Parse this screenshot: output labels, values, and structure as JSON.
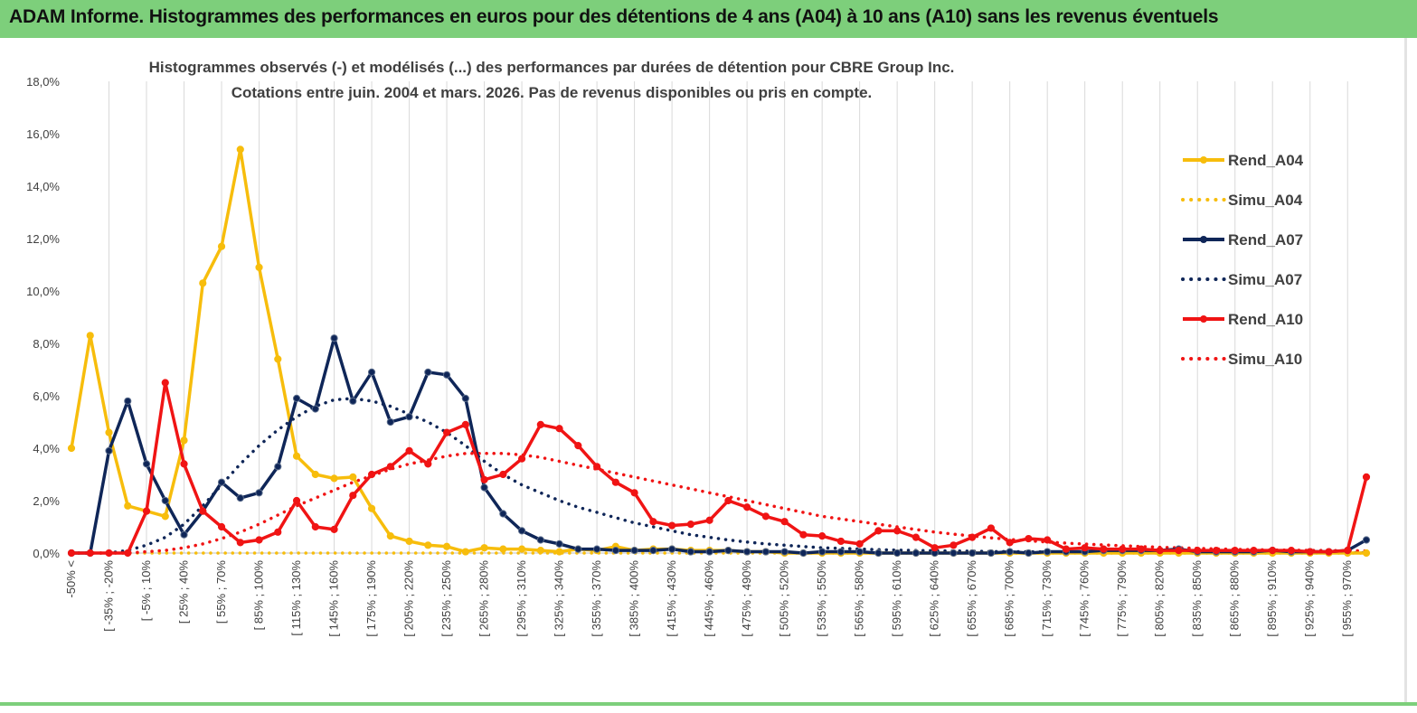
{
  "banner": {
    "title": "ADAM Informe. Histogrammes des performances en euros pour des détentions de 4 ans (A04) à 10 ans (A10) sans les revenus éventuels"
  },
  "colors": {
    "banner_bg": "#7dcf7b",
    "a04": "#f7bd0c",
    "a07": "#0f2658",
    "a10": "#f01414",
    "grid": "#d9d9d9"
  },
  "chart_data": {
    "type": "line",
    "title": "Histogrammes observés (-) et modélisés (...) des performances par durées de détention pour CBRE Group Inc.",
    "subtitle": "Cotations entre juin. 2004 et mars. 2026. Pas de revenus disponibles ou pris en compte.",
    "ylim": [
      0,
      18
    ],
    "yticks": [
      "0,0%",
      "2,0%",
      "4,0%",
      "6,0%",
      "8,0%",
      "10,0%",
      "12,0%",
      "14,0%",
      "16,0%",
      "18,0%"
    ],
    "category_count": 70,
    "tick_labels": [
      "-50% <",
      "[ -35% ; -20%",
      "[ -5% ; 10%",
      "[ 25% ; 40%",
      "[ 55% ; 70%",
      "[ 85% ; 100%",
      "[ 115% ; 130%",
      "[ 145% ; 160%",
      "[ 175% ; 190%",
      "[ 205% ; 220%",
      "[ 235% ; 250%",
      "[ 265% ; 280%",
      "[ 295% ; 310%",
      "[ 325% ; 340%",
      "[ 355% ; 370%",
      "[ 385% ; 400%",
      "[ 415% ; 430%",
      "[ 445% ; 460%",
      "[ 475% ; 490%",
      "[ 505% ; 520%",
      "[ 535% ; 550%",
      "[ 565% ; 580%",
      "[ 595% ; 610%",
      "[ 625% ; 640%",
      "[ 655% ; 670%",
      "[ 685% ; 700%",
      "[ 715% ; 730%",
      "[ 745% ; 760%",
      "[ 775% ; 790%",
      "[ 805% ; 820%",
      "[ 835% ; 850%",
      "[ 865% ; 880%",
      "[ 895% ; 910%",
      "[ 925% ; 940%",
      "[ 955% ; 970%"
    ],
    "series": [
      {
        "name": "Rend_A04",
        "style": "solid",
        "color": "#f7bd0c",
        "values": [
          4.0,
          8.3,
          4.6,
          1.8,
          1.6,
          1.4,
          4.3,
          10.3,
          11.7,
          15.4,
          10.9,
          7.4,
          3.7,
          3.0,
          2.85,
          2.9,
          1.7,
          0.65,
          0.45,
          0.3,
          0.25,
          0.05,
          0.2,
          0.15,
          0.15,
          0.1,
          0.05,
          0.15,
          0.1,
          0.25,
          0.1,
          0.15,
          0.15,
          0.1,
          0.1,
          0.1,
          0.05,
          0.05,
          0.0,
          0.0,
          0.0,
          0.0,
          0.0,
          0.0,
          0.0,
          0.0,
          0.0,
          0.0,
          0.0,
          0.0,
          0.0,
          0.0,
          0.0,
          0.0,
          0.0,
          0.0,
          0.0,
          0.0,
          0.0,
          0.0,
          0.0,
          0.0,
          0.0,
          0.0,
          0.0,
          0.0,
          0.0,
          0.0,
          0.0,
          0.0
        ]
      },
      {
        "name": "Simu_A04",
        "style": "dotted",
        "color": "#f7bd0c",
        "values": [
          0.0,
          0.0,
          0.0,
          0.0,
          0.0,
          0.0,
          0.0,
          0.0,
          0.0,
          0.0,
          0.0,
          0.0,
          0.0,
          0.0,
          0.0,
          0.0,
          0.0,
          0.0,
          0.0,
          0.0,
          0.0,
          0.0,
          0.0,
          0.0,
          0.0,
          0.0,
          0.0,
          0.0,
          0.0,
          0.0,
          0.0,
          0.0,
          0.0,
          0.0,
          0.0,
          0.0,
          0.0,
          0.0,
          0.0,
          0.0,
          0.0,
          0.0,
          0.0,
          0.0,
          0.0,
          0.0,
          0.0,
          0.0,
          0.0,
          0.0,
          0.0,
          0.0,
          0.0,
          0.0,
          0.0,
          0.0,
          0.0,
          0.0,
          0.0,
          0.0,
          0.0,
          0.0,
          0.0,
          0.0,
          0.0,
          0.0,
          0.0,
          0.0,
          0.0,
          0.0
        ]
      },
      {
        "name": "Rend_A07",
        "style": "solid",
        "color": "#0f2658",
        "values": [
          0.0,
          0.0,
          3.9,
          5.8,
          3.4,
          2.0,
          0.7,
          1.6,
          2.7,
          2.1,
          2.3,
          3.3,
          5.9,
          5.5,
          8.2,
          5.8,
          6.9,
          5.0,
          5.2,
          6.9,
          6.8,
          5.9,
          2.5,
          1.5,
          0.85,
          0.5,
          0.35,
          0.15,
          0.15,
          0.1,
          0.1,
          0.1,
          0.15,
          0.05,
          0.05,
          0.1,
          0.05,
          0.05,
          0.05,
          0.0,
          0.05,
          0.05,
          0.05,
          0.0,
          0.0,
          0.0,
          0.0,
          0.0,
          0.0,
          0.0,
          0.05,
          0.0,
          0.05,
          0.05,
          0.05,
          0.1,
          0.1,
          0.1,
          0.1,
          0.15,
          0.05,
          0.05,
          0.05,
          0.05,
          0.1,
          0.05,
          0.05,
          0.05,
          0.1,
          0.5
        ]
      },
      {
        "name": "Simu_A07",
        "style": "dotted",
        "color": "#0f2658",
        "values": [
          0.0,
          0.0,
          0.0,
          0.1,
          0.3,
          0.6,
          1.1,
          1.8,
          2.6,
          3.4,
          4.1,
          4.7,
          5.2,
          5.6,
          5.85,
          5.9,
          5.8,
          5.6,
          5.3,
          5.0,
          4.6,
          4.1,
          3.5,
          3.0,
          2.6,
          2.3,
          2.0,
          1.75,
          1.55,
          1.35,
          1.15,
          1.0,
          0.85,
          0.7,
          0.6,
          0.5,
          0.42,
          0.35,
          0.3,
          0.25,
          0.2,
          0.18,
          0.15,
          0.13,
          0.11,
          0.1,
          0.09,
          0.08,
          0.07,
          0.06,
          0.05,
          0.05,
          0.04,
          0.04,
          0.04,
          0.03,
          0.03,
          0.03,
          0.02,
          0.02,
          0.02,
          0.02,
          0.02,
          0.02,
          0.02,
          0.01,
          0.01,
          0.01,
          0.01,
          0.01
        ]
      },
      {
        "name": "Rend_A10",
        "style": "solid",
        "color": "#f01414",
        "values": [
          0.0,
          0.0,
          0.0,
          0.0,
          1.6,
          6.5,
          3.4,
          1.6,
          1.0,
          0.4,
          0.5,
          0.8,
          2.0,
          1.0,
          0.9,
          2.2,
          3.0,
          3.3,
          3.9,
          3.4,
          4.6,
          4.9,
          2.8,
          3.0,
          3.6,
          4.9,
          4.75,
          4.1,
          3.3,
          2.7,
          2.3,
          1.2,
          1.05,
          1.1,
          1.25,
          2.0,
          1.75,
          1.4,
          1.2,
          0.7,
          0.65,
          0.45,
          0.35,
          0.85,
          0.85,
          0.6,
          0.2,
          0.3,
          0.6,
          0.95,
          0.4,
          0.55,
          0.5,
          0.15,
          0.2,
          0.15,
          0.15,
          0.15,
          0.1,
          0.1,
          0.1,
          0.1,
          0.1,
          0.1,
          0.1,
          0.1,
          0.05,
          0.05,
          0.1,
          2.9
        ]
      },
      {
        "name": "Simu_A10",
        "style": "dotted",
        "color": "#f01414",
        "values": [
          0.0,
          0.0,
          0.0,
          0.0,
          0.05,
          0.1,
          0.2,
          0.35,
          0.55,
          0.8,
          1.1,
          1.45,
          1.8,
          2.1,
          2.4,
          2.7,
          2.95,
          3.2,
          3.4,
          3.55,
          3.7,
          3.8,
          3.8,
          3.8,
          3.75,
          3.65,
          3.5,
          3.35,
          3.2,
          3.05,
          2.9,
          2.75,
          2.6,
          2.45,
          2.3,
          2.15,
          2.0,
          1.85,
          1.7,
          1.55,
          1.4,
          1.3,
          1.2,
          1.1,
          1.0,
          0.9,
          0.8,
          0.72,
          0.65,
          0.58,
          0.52,
          0.47,
          0.42,
          0.38,
          0.34,
          0.31,
          0.28,
          0.25,
          0.22,
          0.2,
          0.18,
          0.16,
          0.14,
          0.13,
          0.12,
          0.11,
          0.1,
          0.1,
          0.09,
          0.08
        ]
      }
    ],
    "legend": [
      "Rend_A04",
      "Simu_A04",
      "Rend_A07",
      "Simu_A07",
      "Rend_A10",
      "Simu_A10"
    ],
    "legend_position": "right"
  }
}
